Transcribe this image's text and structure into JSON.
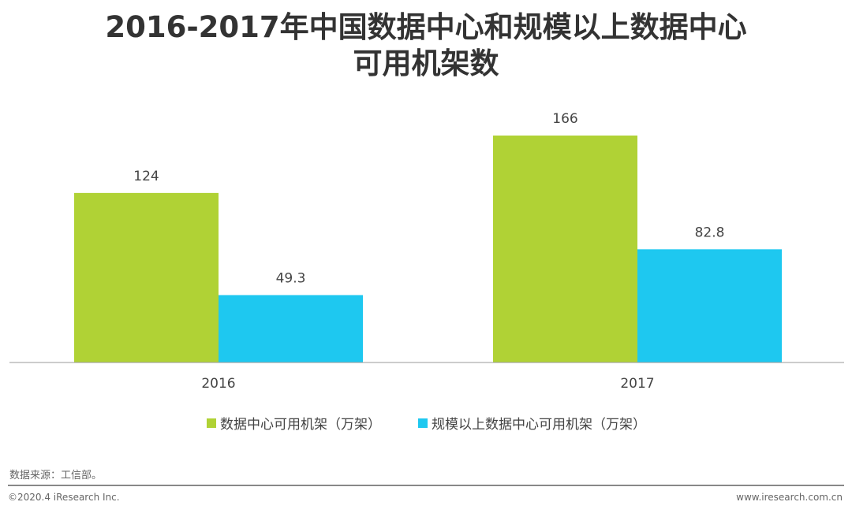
{
  "chart_data": {
    "type": "bar",
    "title_line1": "2016-2017年中国数据中心和规模以上数据中心",
    "title_line2": "可用机架数",
    "categories": [
      "2016",
      "2017"
    ],
    "series": [
      {
        "name": "数据中心可用机架（万架）",
        "color": "#b0d235",
        "values": [
          124,
          166
        ],
        "labels": [
          "124",
          "166"
        ]
      },
      {
        "name": "规模以上数据中心可用机架（万架）",
        "color": "#1ec8f0",
        "values": [
          49.3,
          82.8
        ],
        "labels": [
          "49.3",
          "82.8"
        ]
      }
    ],
    "ylim": [
      0,
      166
    ],
    "grid": false,
    "legend": "bottom"
  },
  "footer": {
    "source": "数据来源：工信部。",
    "copyright": "©2020.4 iResearch Inc.",
    "url": "www.iresearch.com.cn"
  }
}
